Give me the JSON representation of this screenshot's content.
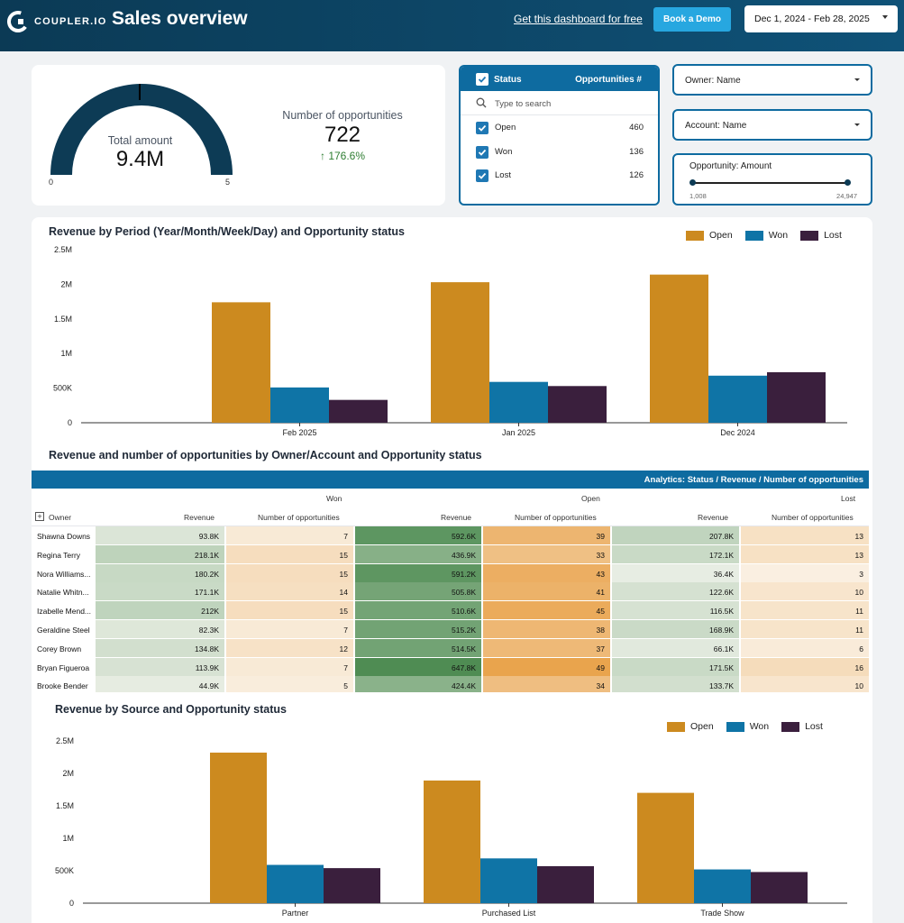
{
  "header": {
    "logo_text": "COUPLER.IO",
    "title": "Sales overview",
    "free_link": "Get this dashboard for free",
    "demo_button": "Book a Demo",
    "date_range": "Dec 1, 2024 - Feb 28, 2025"
  },
  "kpi": {
    "total_amount_label": "Total amount",
    "total_amount_value": "9.4M",
    "gauge_min": "0",
    "gauge_max": "5",
    "opportunities_label": "Number of opportunities",
    "opportunities_value": "722",
    "opportunities_change": "176.6%"
  },
  "status_filter": {
    "header_label": "Status",
    "header_count_label": "Opportunities #",
    "search_placeholder": "Type to search",
    "items": [
      {
        "label": "Open",
        "count": "460"
      },
      {
        "label": "Won",
        "count": "136"
      },
      {
        "label": "Lost",
        "count": "126"
      }
    ]
  },
  "filters": {
    "owner": "Owner: Name",
    "account": "Account: Name",
    "amount_label": "Opportunity: Amount",
    "amount_min": "1,008",
    "amount_max": "24,947"
  },
  "colors": {
    "open": "#cc8a1f",
    "won": "#0f74a6",
    "lost": "#3a1f3d",
    "header": "#0e6ba0"
  },
  "legend": {
    "open": "Open",
    "won": "Won",
    "lost": "Lost"
  },
  "chart_data": [
    {
      "type": "bar",
      "title": "Revenue by Period (Year/Month/Week/Day) and Opportunity status",
      "categories": [
        "Feb 2025",
        "Jan 2025",
        "Dec 2024"
      ],
      "series": [
        {
          "name": "Open",
          "values": [
            1740000,
            2030000,
            2140000
          ]
        },
        {
          "name": "Won",
          "values": [
            510000,
            590000,
            680000
          ]
        },
        {
          "name": "Lost",
          "values": [
            330000,
            530000,
            730000
          ]
        }
      ],
      "y_ticks": [
        "0",
        "500K",
        "1M",
        "1.5M",
        "2M",
        "2.5M"
      ],
      "ylim": [
        0,
        2500000
      ]
    },
    {
      "type": "bar",
      "title": "Revenue by Source and Opportunity status",
      "categories": [
        "Partner",
        "Purchased List",
        "Trade Show"
      ],
      "series": [
        {
          "name": "Open",
          "values": [
            2320000,
            1890000,
            1700000
          ]
        },
        {
          "name": "Won",
          "values": [
            590000,
            690000,
            520000
          ]
        },
        {
          "name": "Lost",
          "values": [
            540000,
            570000,
            480000
          ]
        }
      ],
      "y_ticks": [
        "0",
        "500K",
        "1M",
        "1.5M",
        "2M",
        "2.5M"
      ],
      "ylim": [
        0,
        2500000
      ]
    }
  ],
  "table": {
    "title": "Revenue and number of opportunities by Owner/Account and Opportunity status",
    "bar_label": "Analytics: Status / Revenue / Number of opportunities",
    "owner_header": "Owner",
    "groups": [
      "Won",
      "Open",
      "Lost"
    ],
    "col_revenue": "Revenue",
    "col_count": "Number of opportunities",
    "rows": [
      {
        "owner": "Shawna Downs",
        "won_rev": "93.8K",
        "won_n": "7",
        "open_rev": "592.6K",
        "open_n": "39",
        "lost_rev": "207.8K",
        "lost_n": "13"
      },
      {
        "owner": "Regina Terry",
        "won_rev": "218.1K",
        "won_n": "15",
        "open_rev": "436.9K",
        "open_n": "33",
        "lost_rev": "172.1K",
        "lost_n": "13"
      },
      {
        "owner": "Nora Williams...",
        "won_rev": "180.2K",
        "won_n": "15",
        "open_rev": "591.2K",
        "open_n": "43",
        "lost_rev": "36.4K",
        "lost_n": "3"
      },
      {
        "owner": "Natalie Whitn...",
        "won_rev": "171.1K",
        "won_n": "14",
        "open_rev": "505.8K",
        "open_n": "41",
        "lost_rev": "122.6K",
        "lost_n": "10"
      },
      {
        "owner": "Izabelle Mend...",
        "won_rev": "212K",
        "won_n": "15",
        "open_rev": "510.6K",
        "open_n": "45",
        "lost_rev": "116.5K",
        "lost_n": "11"
      },
      {
        "owner": "Geraldine Steel",
        "won_rev": "82.3K",
        "won_n": "7",
        "open_rev": "515.2K",
        "open_n": "38",
        "lost_rev": "168.9K",
        "lost_n": "11"
      },
      {
        "owner": "Corey Brown",
        "won_rev": "134.8K",
        "won_n": "12",
        "open_rev": "514.5K",
        "open_n": "37",
        "lost_rev": "66.1K",
        "lost_n": "6"
      },
      {
        "owner": "Bryan Figueroa",
        "won_rev": "113.9K",
        "won_n": "7",
        "open_rev": "647.8K",
        "open_n": "49",
        "lost_rev": "171.5K",
        "lost_n": "16"
      },
      {
        "owner": "Brooke Bender",
        "won_rev": "44.9K",
        "won_n": "5",
        "open_rev": "424.4K",
        "open_n": "34",
        "lost_rev": "133.7K",
        "lost_n": "10"
      }
    ]
  }
}
